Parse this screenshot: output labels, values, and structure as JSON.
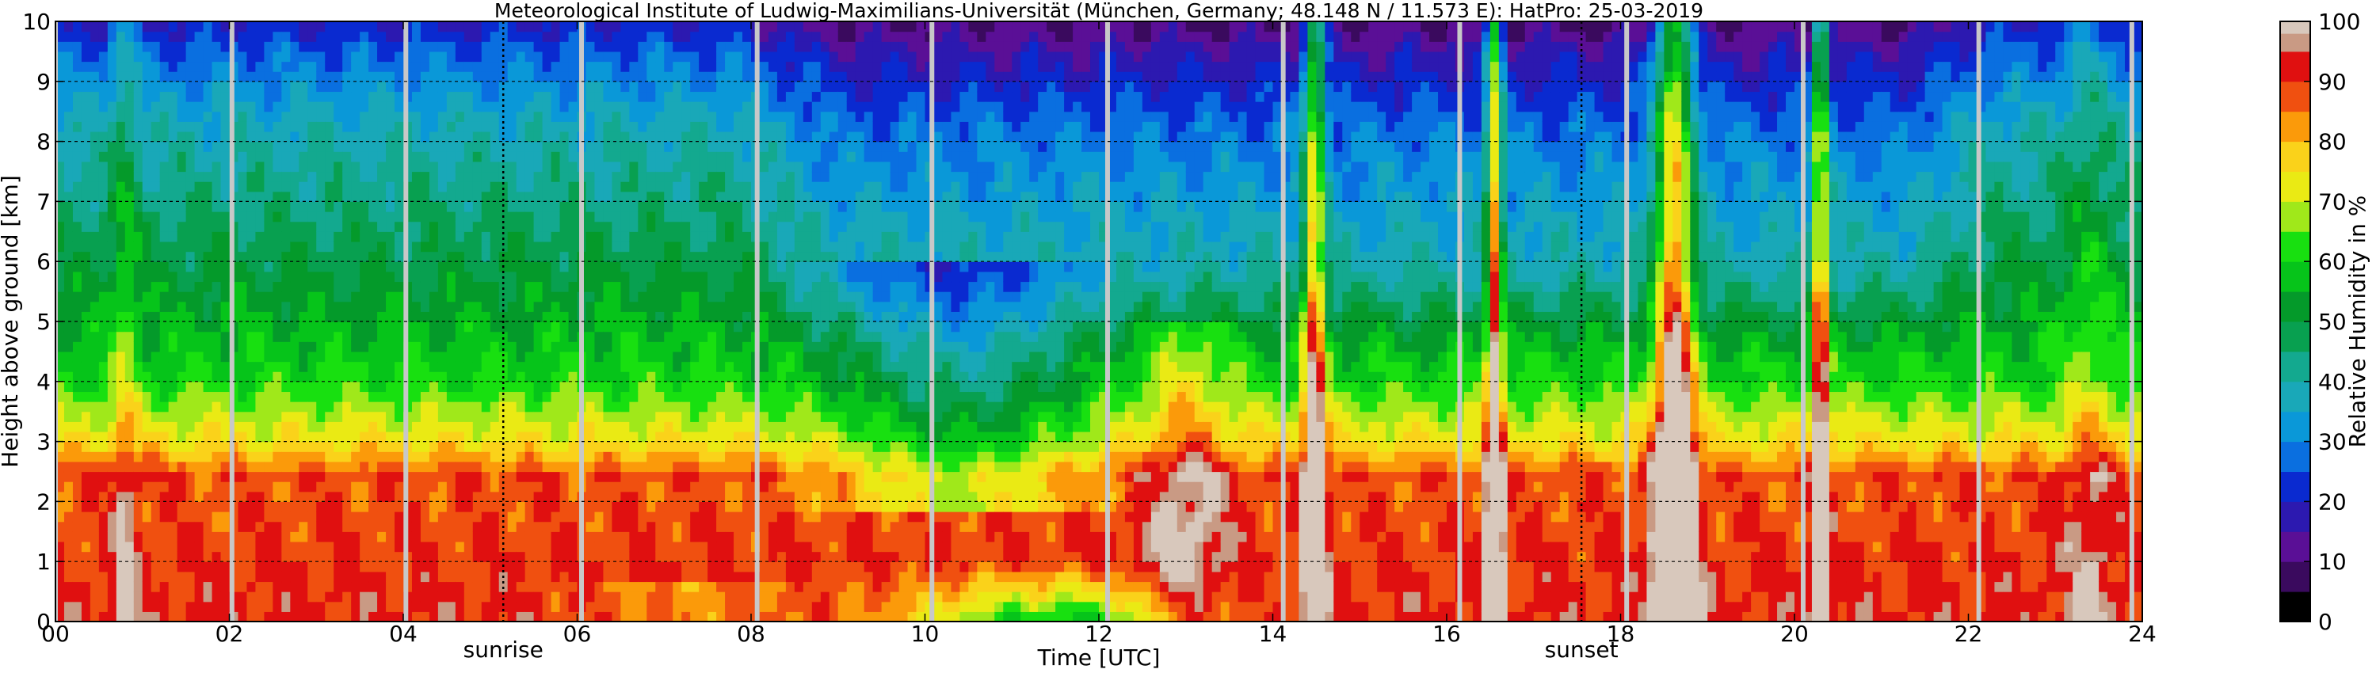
{
  "chart_data": {
    "type": "heatmap",
    "title": "Meteorological Institute of Ludwig-Maximilians-Universität (München, Germany; 48.148 N / 11.573 E):    HatPro: 25-03-2019",
    "xlabel": "Time [UTC]",
    "ylabel": "Height above ground [km]",
    "xlim": [
      0,
      24
    ],
    "ylim": [
      0,
      10
    ],
    "x_ticks": [
      "00",
      "02",
      "04",
      "06",
      "08",
      "10",
      "12",
      "14",
      "16",
      "18",
      "20",
      "22",
      "24"
    ],
    "y_ticks": [
      "0",
      "1",
      "2",
      "3",
      "4",
      "5",
      "6",
      "7",
      "8",
      "9",
      "10"
    ],
    "grid": true,
    "colorbar": {
      "label": "Relative Humidity in %",
      "min": 0,
      "max": 100,
      "ticks": [
        "0",
        "10",
        "20",
        "30",
        "40",
        "50",
        "60",
        "70",
        "80",
        "90",
        "100"
      ],
      "levels": [
        {
          "from": 0,
          "to": 5,
          "color": "#000000"
        },
        {
          "from": 5,
          "to": 10,
          "color": "#3a0a5e"
        },
        {
          "from": 10,
          "to": 15,
          "color": "#5a0f96"
        },
        {
          "from": 15,
          "to": 20,
          "color": "#2c19b0"
        },
        {
          "from": 20,
          "to": 25,
          "color": "#0a2ad0"
        },
        {
          "from": 25,
          "to": 30,
          "color": "#0a6fe0"
        },
        {
          "from": 30,
          "to": 35,
          "color": "#0a98d8"
        },
        {
          "from": 35,
          "to": 40,
          "color": "#19a8b8"
        },
        {
          "from": 40,
          "to": 45,
          "color": "#13a98f"
        },
        {
          "from": 45,
          "to": 50,
          "color": "#08a050"
        },
        {
          "from": 50,
          "to": 55,
          "color": "#049a2a"
        },
        {
          "from": 55,
          "to": 60,
          "color": "#06c41a"
        },
        {
          "from": 60,
          "to": 65,
          "color": "#18e010"
        },
        {
          "from": 65,
          "to": 70,
          "color": "#a0e81a"
        },
        {
          "from": 70,
          "to": 75,
          "color": "#eaea14"
        },
        {
          "from": 75,
          "to": 80,
          "color": "#fad21a"
        },
        {
          "from": 80,
          "to": 85,
          "color": "#fb9a0a"
        },
        {
          "from": 85,
          "to": 90,
          "color": "#f05010"
        },
        {
          "from": 90,
          "to": 95,
          "color": "#e01010"
        },
        {
          "from": 95,
          "to": 98,
          "color": "#c99a84"
        },
        {
          "from": 98,
          "to": 100,
          "color": "#d8c8bc"
        }
      ]
    },
    "annotations": [
      {
        "text": "sunrise",
        "x": 5.15
      },
      {
        "text": "sunset",
        "x": 17.55
      }
    ],
    "gap_times": [
      0.0,
      2.03,
      4.03,
      6.05,
      8.07,
      10.08,
      12.1,
      14.12,
      16.15,
      18.07,
      20.1,
      22.12,
      23.88
    ],
    "rh_field_description_points": {
      "surface_to_2km_morning": 92,
      "2_to_3km_morning": 75,
      "3_to_4km_morning": 62,
      "4_to_6km_morning": 50,
      "6_to_8km_morning": 40,
      "8_to_9_5km_morning": 30,
      "above_9_5km_morning": 20
    }
  }
}
